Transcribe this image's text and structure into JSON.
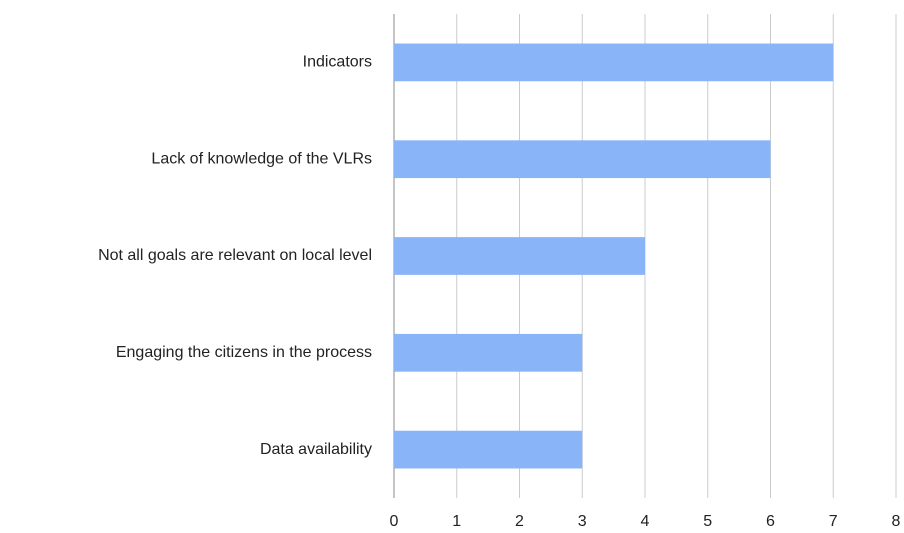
{
  "chart_data": {
    "type": "bar",
    "orientation": "horizontal",
    "categories": [
      "Indicators",
      "Lack of knowledge of the VLRs",
      "Not all goals are relevant on local level",
      "Engaging the citizens in the process",
      "Data availability"
    ],
    "values": [
      7,
      6,
      4,
      3,
      3
    ],
    "color": "#8ab4f8",
    "xlim": [
      0,
      8
    ],
    "xticks": [
      0,
      1,
      2,
      3,
      4,
      5,
      6,
      7,
      8
    ],
    "grid": true
  }
}
